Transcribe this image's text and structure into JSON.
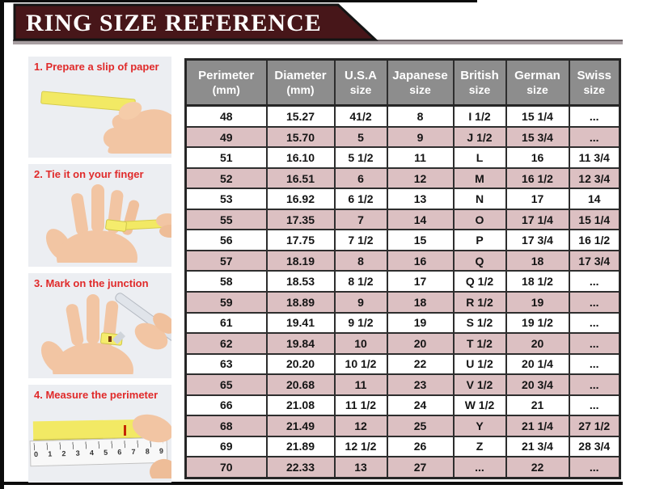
{
  "banner": {
    "title": "RING SIZE REFERENCE",
    "bg_color": "#471619",
    "text_color": "#ffffff"
  },
  "steps": [
    {
      "label": "1. Prepare a slip of paper"
    },
    {
      "label": "2. Tie it on your finger"
    },
    {
      "label": "3. Mark on the junction"
    },
    {
      "label": "4. Measure the perimeter"
    }
  ],
  "ruler": {
    "numbers": [
      "0",
      "1",
      "2",
      "3",
      "4",
      "5",
      "6",
      "7",
      "8",
      "9"
    ]
  },
  "chart_data": {
    "type": "table",
    "title": "RING SIZE REFERENCE",
    "columns": [
      {
        "line1": "Perimeter",
        "line2": "(mm)"
      },
      {
        "line1": "Diameter",
        "line2": "(mm)"
      },
      {
        "line1": "U.S.A",
        "line2": "size"
      },
      {
        "line1": "Japanese",
        "line2": "size"
      },
      {
        "line1": "British",
        "line2": "size"
      },
      {
        "line1": "German",
        "line2": "size"
      },
      {
        "line1": "Swiss",
        "line2": "size"
      }
    ],
    "rows": [
      [
        "48",
        "15.27",
        "41/2",
        "8",
        "I 1/2",
        "15 1/4",
        "..."
      ],
      [
        "49",
        "15.70",
        "5",
        "9",
        "J 1/2",
        "15 3/4",
        "..."
      ],
      [
        "51",
        "16.10",
        "5 1/2",
        "11",
        "L",
        "16",
        "11 3/4"
      ],
      [
        "52",
        "16.51",
        "6",
        "12",
        "M",
        "16 1/2",
        "12 3/4"
      ],
      [
        "53",
        "16.92",
        "6 1/2",
        "13",
        "N",
        "17",
        "14"
      ],
      [
        "55",
        "17.35",
        "7",
        "14",
        "O",
        "17 1/4",
        "15 1/4"
      ],
      [
        "56",
        "17.75",
        "7 1/2",
        "15",
        "P",
        "17 3/4",
        "16 1/2"
      ],
      [
        "57",
        "18.19",
        "8",
        "16",
        "Q",
        "18",
        "17 3/4"
      ],
      [
        "58",
        "18.53",
        "8 1/2",
        "17",
        "Q 1/2",
        "18 1/2",
        "..."
      ],
      [
        "59",
        "18.89",
        "9",
        "18",
        "R 1/2",
        "19",
        "..."
      ],
      [
        "61",
        "19.41",
        "9 1/2",
        "19",
        "S 1/2",
        "19 1/2",
        "..."
      ],
      [
        "62",
        "19.84",
        "10",
        "20",
        "T 1/2",
        "20",
        "..."
      ],
      [
        "63",
        "20.20",
        "10 1/2",
        "22",
        "U 1/2",
        "20 1/4",
        "..."
      ],
      [
        "65",
        "20.68",
        "11",
        "23",
        "V 1/2",
        "20 3/4",
        "..."
      ],
      [
        "66",
        "21.08",
        "11 1/2",
        "24",
        "W 1/2",
        "21",
        "..."
      ],
      [
        "68",
        "21.49",
        "12",
        "25",
        "Y",
        "21 1/4",
        "27 1/2"
      ],
      [
        "69",
        "21.89",
        "12 1/2",
        "26",
        "Z",
        "21 3/4",
        "28 3/4"
      ],
      [
        "70",
        "22.33",
        "13",
        "27",
        "...",
        "22",
        "..."
      ]
    ],
    "colors": {
      "header_bg": "#8d8d8d",
      "row_pink": "#dcc0c2",
      "row_white": "#ffffff",
      "grid": "#2e2e2e",
      "step_label_red": "#e02a2a"
    }
  }
}
